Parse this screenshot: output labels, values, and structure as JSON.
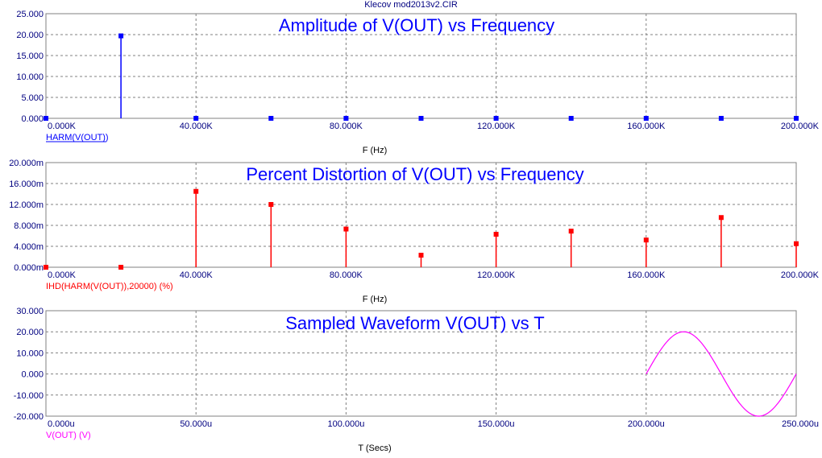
{
  "window": {
    "title": "Klecov mod2013v2.CIR"
  },
  "colors": {
    "frame": "#808080",
    "grid": "#808080",
    "harm": "#0000ff",
    "ihd": "#ff0000",
    "vout": "#ff00ff",
    "axis_text": "#000080",
    "title_text": "#0000ff"
  },
  "chart_data": [
    {
      "type": "bar",
      "title": "Amplitude of V(OUT) vs Frequency",
      "xlabel": "F (Hz)",
      "series": [
        {
          "name": "HARM(V(OUT))",
          "x": [
            0,
            20000,
            40000,
            60000,
            80000,
            100000,
            120000,
            140000,
            160000,
            180000,
            200000
          ],
          "values": [
            0,
            19.7,
            0,
            0,
            0,
            0,
            0,
            0,
            0,
            0,
            0
          ]
        }
      ],
      "xlim": [
        0,
        200000
      ],
      "ylim": [
        0,
        25
      ],
      "xticks": [
        0,
        40000,
        80000,
        120000,
        160000,
        200000
      ],
      "xtick_labels": [
        "0.000K",
        "40.000K",
        "80.000K",
        "120.000K",
        "160.000K",
        "200.000K"
      ],
      "yticks": [
        0,
        5,
        10,
        15,
        20,
        25
      ],
      "ytick_labels": [
        "0.000",
        "5.000",
        "10.000",
        "15.000",
        "20.000",
        "25.000"
      ],
      "grid": true
    },
    {
      "type": "bar",
      "title": "Percent Distortion of V(OUT) vs Frequency",
      "xlabel": "F (Hz)",
      "series": [
        {
          "name": "IHD(HARM(V(OUT)),20000) (%)",
          "x": [
            0,
            20000,
            40000,
            60000,
            80000,
            100000,
            120000,
            140000,
            160000,
            180000,
            200000
          ],
          "values": [
            0,
            0,
            0.0145,
            0.012,
            0.0073,
            0.0023,
            0.0063,
            0.0069,
            0.0052,
            0.0095,
            0.0045
          ]
        }
      ],
      "xlim": [
        0,
        200000
      ],
      "ylim": [
        0,
        0.02
      ],
      "xticks": [
        0,
        40000,
        80000,
        120000,
        160000,
        200000
      ],
      "xtick_labels": [
        "0.000K",
        "40.000K",
        "80.000K",
        "120.000K",
        "160.000K",
        "200.000K"
      ],
      "yticks": [
        0,
        0.004,
        0.008,
        0.012,
        0.016,
        0.02
      ],
      "ytick_labels": [
        "0.000m",
        "4.000m",
        "8.000m",
        "12.000m",
        "16.000m",
        "20.000m"
      ],
      "grid": true
    },
    {
      "type": "line",
      "title": "Sampled Waveform  V(OUT) vs T",
      "xlabel": "T (Secs)",
      "series": [
        {
          "name": "V(OUT) (V)",
          "waveform": "sine",
          "t_start": 0.0002,
          "t_end": 0.00025,
          "amplitude": 20,
          "frequency": 20000
        }
      ],
      "xlim": [
        0,
        0.00025
      ],
      "ylim": [
        -20,
        30
      ],
      "xticks": [
        0,
        5e-05,
        0.0001,
        0.00015,
        0.0002,
        0.00025
      ],
      "xtick_labels": [
        "0.000u",
        "50.000u",
        "100.000u",
        "150.000u",
        "200.000u",
        "250.000u"
      ],
      "yticks": [
        -20,
        -10,
        0,
        10,
        20,
        30
      ],
      "ytick_labels": [
        "-20.000",
        "-10.000",
        "0.000",
        "10.000",
        "20.000",
        "30.000"
      ],
      "grid": true
    }
  ]
}
